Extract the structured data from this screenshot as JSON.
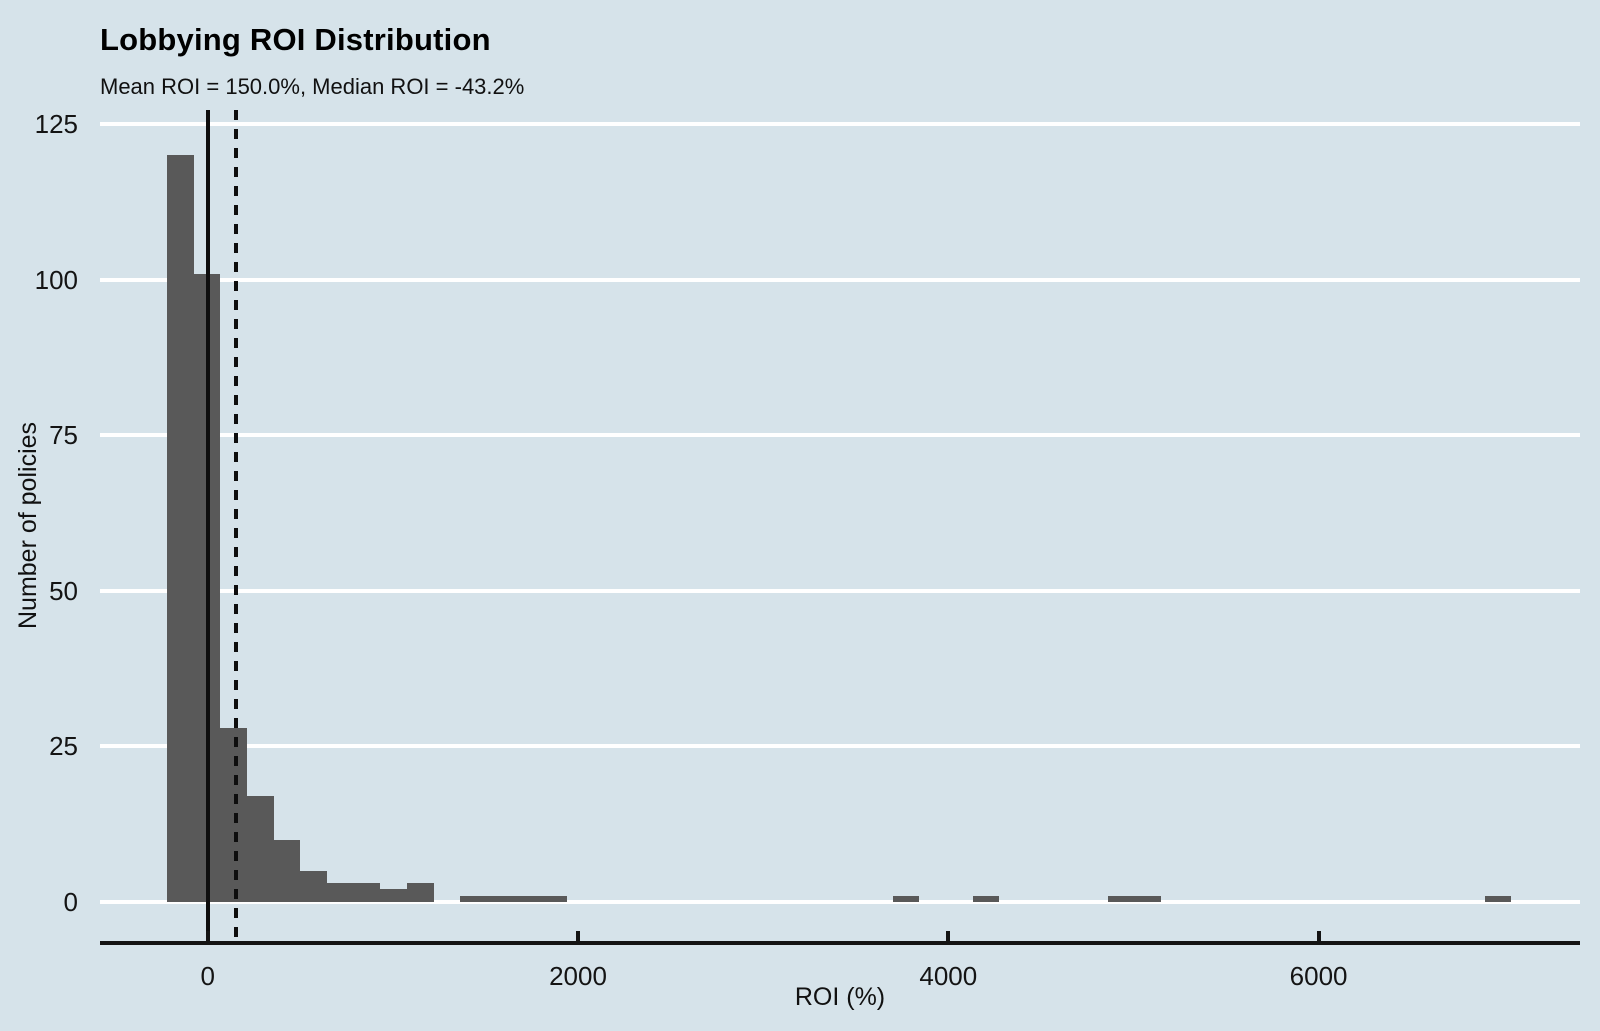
{
  "chart_data": {
    "type": "bar",
    "subtype": "histogram",
    "title": "Lobbying ROI Distribution",
    "subtitle": "Mean ROI = 150.0%, Median ROI = -43.2%",
    "xlabel": "ROI (%)",
    "ylabel": "Number of policies",
    "x_ticks": [
      0,
      2000,
      4000,
      6000
    ],
    "y_ticks": [
      0,
      25,
      50,
      75,
      100,
      125
    ],
    "xlim": [
      -582,
      7412
    ],
    "ylim": [
      -6.3,
      127.3
    ],
    "grid": "horizontal-major-only",
    "legend": "none",
    "bars": [
      {
        "x0": -220,
        "x1": -76,
        "count": 120
      },
      {
        "x0": -76,
        "x1": 68,
        "count": 101
      },
      {
        "x0": 68,
        "x1": 212,
        "count": 28
      },
      {
        "x0": 212,
        "x1": 356,
        "count": 17
      },
      {
        "x0": 356,
        "x1": 500,
        "count": 10
      },
      {
        "x0": 500,
        "x1": 644,
        "count": 5
      },
      {
        "x0": 644,
        "x1": 788,
        "count": 3
      },
      {
        "x0": 788,
        "x1": 932,
        "count": 3
      },
      {
        "x0": 932,
        "x1": 1076,
        "count": 2
      },
      {
        "x0": 1076,
        "x1": 1220,
        "count": 3
      },
      {
        "x0": 1364,
        "x1": 1940,
        "count": 1
      },
      {
        "x0": 3700,
        "x1": 3844,
        "count": 1
      },
      {
        "x0": 4132,
        "x1": 4276,
        "count": 1
      },
      {
        "x0": 4862,
        "x1": 5150,
        "count": 1
      },
      {
        "x0": 6898,
        "x1": 7042,
        "count": 1
      }
    ],
    "reference_lines": [
      {
        "name": "zero-median-line",
        "style": "solid",
        "x": 0
      },
      {
        "name": "mean-line",
        "style": "dashed",
        "x": 150
      }
    ],
    "colors": {
      "background": "#d6e3ea",
      "bar": "#595959",
      "gridline": "#ffffff",
      "axis": "#141414",
      "text": "#000000"
    }
  }
}
